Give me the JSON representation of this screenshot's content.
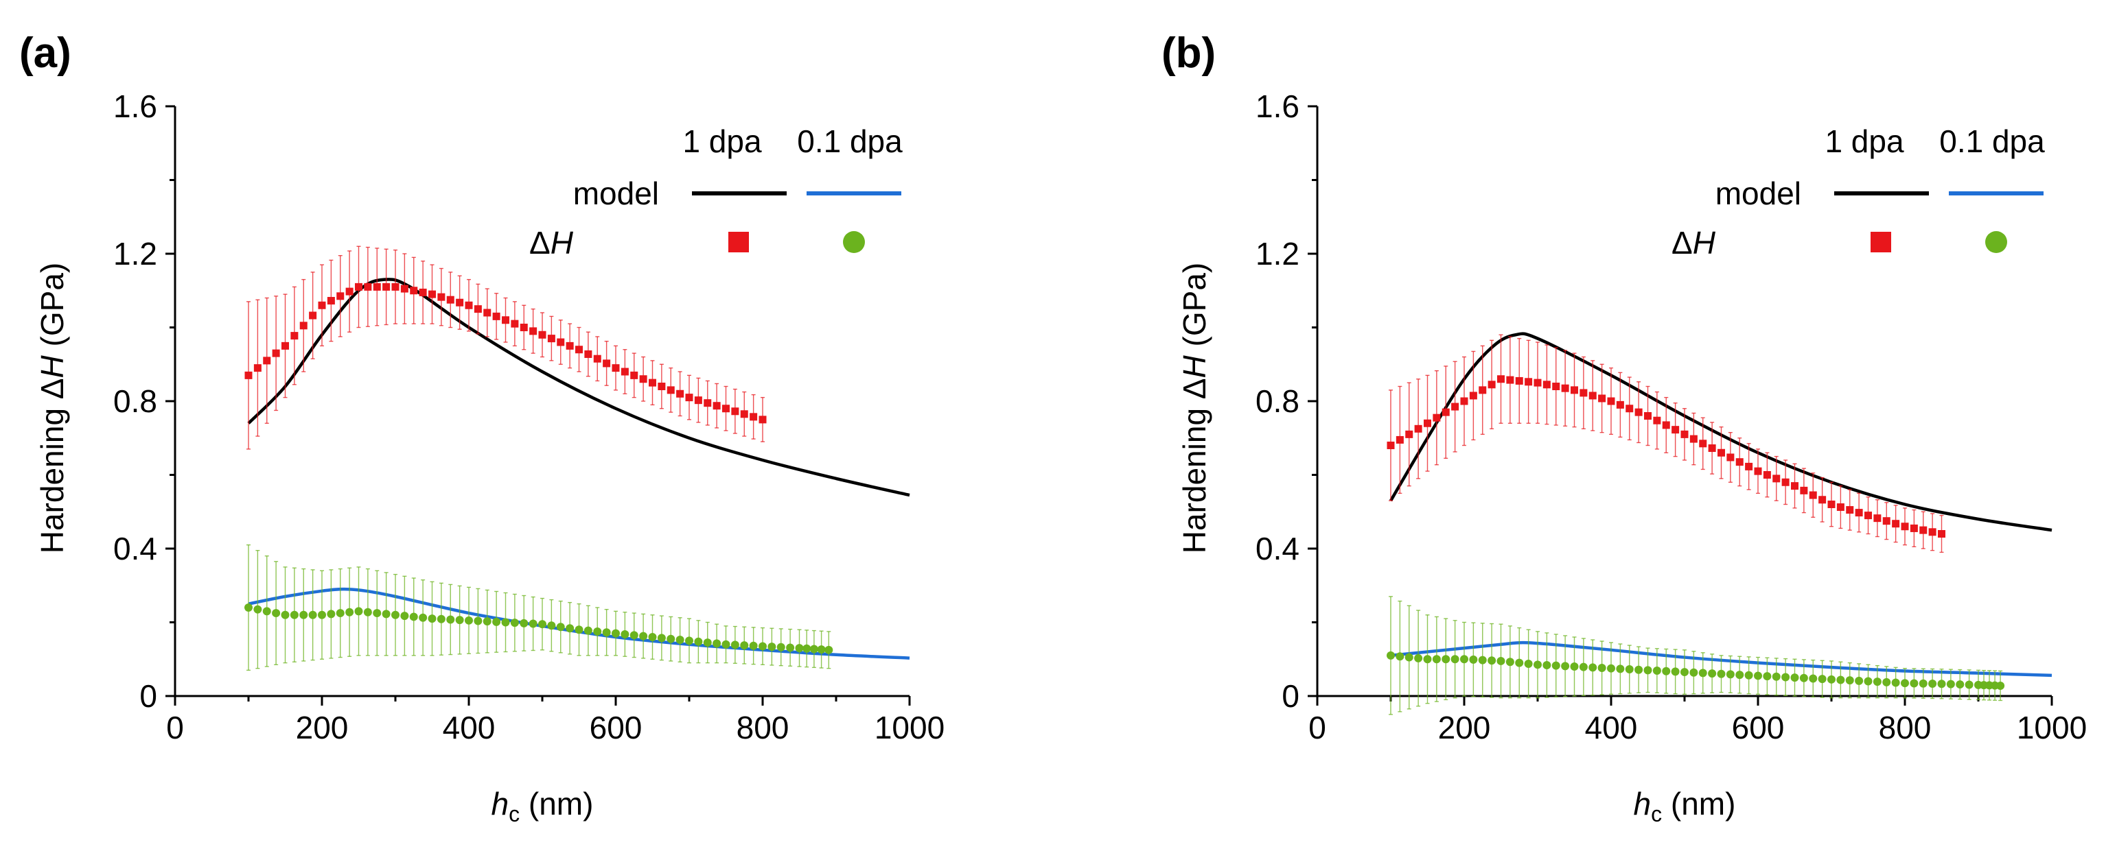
{
  "chart_data": [
    {
      "type": "line",
      "panel_label": "(a)",
      "ylabel_prefix": "Hardening ",
      "ylabel_delta": "Δ",
      "ylabel_var": "H",
      "ylabel_unit": " (GPa)",
      "xlabel_var": "h",
      "xlabel_sub": "c",
      "xlabel_unit": " (nm)",
      "xlim": [
        0,
        1000
      ],
      "ylim": [
        0,
        1.6
      ],
      "xticks": [
        "0",
        "200",
        "400",
        "600",
        "800",
        "1000"
      ],
      "yticks": [
        "0",
        "0.4",
        "0.8",
        "1.2",
        "1.6"
      ],
      "legend": {
        "col1_header": "1 dpa",
        "col2_header": "0.1 dpa",
        "row1_label": "model",
        "row2_delta": "Δ",
        "row2_var": "H",
        "col1_color": "#000000",
        "col2_color": "#1f6fd6",
        "marker1_color": "#e8161b",
        "marker2_color": "#6bb31e"
      },
      "series": [
        {
          "name": "model 1 dpa",
          "kind": "line",
          "color": "#000000",
          "x": [
            100,
            150,
            200,
            250,
            285,
            320,
            400,
            500,
            600,
            700,
            800,
            900,
            1000
          ],
          "y": [
            0.74,
            0.84,
            0.98,
            1.1,
            1.13,
            1.11,
            1.0,
            0.88,
            0.78,
            0.7,
            0.64,
            0.59,
            0.545
          ]
        },
        {
          "name": "model 0.1 dpa",
          "kind": "line",
          "color": "#1f6fd6",
          "x": [
            100,
            150,
            200,
            230,
            260,
            300,
            400,
            500,
            600,
            700,
            800,
            900,
            1000
          ],
          "y": [
            0.25,
            0.27,
            0.285,
            0.29,
            0.285,
            0.27,
            0.225,
            0.19,
            0.16,
            0.14,
            0.125,
            0.112,
            0.103
          ]
        },
        {
          "name": "ΔH 1 dpa",
          "kind": "markers",
          "marker": "square",
          "color": "#e8161b",
          "x": [
            100,
            150,
            200,
            250,
            300,
            350,
            400,
            450,
            500,
            550,
            600,
            650,
            700,
            750,
            800
          ],
          "y": [
            0.87,
            0.95,
            1.06,
            1.11,
            1.11,
            1.09,
            1.06,
            1.02,
            0.98,
            0.94,
            0.89,
            0.85,
            0.81,
            0.78,
            0.75
          ],
          "err": [
            0.2,
            0.14,
            0.11,
            0.11,
            0.1,
            0.08,
            0.07,
            0.06,
            0.06,
            0.06,
            0.06,
            0.06,
            0.06,
            0.06,
            0.06
          ]
        },
        {
          "name": "ΔH 0.1 dpa",
          "kind": "markers",
          "marker": "circle",
          "color": "#6bb31e",
          "x": [
            100,
            150,
            200,
            250,
            300,
            350,
            400,
            450,
            500,
            550,
            600,
            650,
            700,
            750,
            800,
            850,
            890
          ],
          "y": [
            0.24,
            0.22,
            0.22,
            0.23,
            0.22,
            0.21,
            0.205,
            0.2,
            0.195,
            0.18,
            0.17,
            0.16,
            0.15,
            0.14,
            0.135,
            0.13,
            0.125
          ],
          "err": [
            0.17,
            0.13,
            0.12,
            0.12,
            0.11,
            0.1,
            0.09,
            0.08,
            0.07,
            0.07,
            0.06,
            0.06,
            0.06,
            0.05,
            0.05,
            0.05,
            0.05
          ]
        }
      ]
    },
    {
      "type": "line",
      "panel_label": "(b)",
      "ylabel_prefix": "Hardening ",
      "ylabel_delta": "Δ",
      "ylabel_var": "H",
      "ylabel_unit": " (GPa)",
      "xlabel_var": "h",
      "xlabel_sub": "c",
      "xlabel_unit": " (nm)",
      "xlim": [
        0,
        1000
      ],
      "ylim": [
        0,
        1.6
      ],
      "xticks": [
        "0",
        "200",
        "400",
        "600",
        "800",
        "1000"
      ],
      "yticks": [
        "0",
        "0.4",
        "0.8",
        "1.2",
        "1.6"
      ],
      "legend": {
        "col1_header": "1 dpa",
        "col2_header": "0.1 dpa",
        "row1_label": "model",
        "row2_delta": "Δ",
        "row2_var": "H",
        "col1_color": "#000000",
        "col2_color": "#1f6fd6",
        "marker1_color": "#e8161b",
        "marker2_color": "#6bb31e"
      },
      "series": [
        {
          "name": "model 1 dpa",
          "kind": "line",
          "color": "#000000",
          "x": [
            100,
            150,
            200,
            240,
            270,
            300,
            400,
            500,
            600,
            700,
            800,
            900,
            1000
          ],
          "y": [
            0.53,
            0.7,
            0.86,
            0.95,
            0.98,
            0.97,
            0.87,
            0.76,
            0.66,
            0.58,
            0.52,
            0.48,
            0.45
          ]
        },
        {
          "name": "model 0.1 dpa",
          "kind": "line",
          "color": "#1f6fd6",
          "x": [
            100,
            150,
            200,
            250,
            280,
            320,
            400,
            500,
            600,
            700,
            800,
            900,
            1000
          ],
          "y": [
            0.11,
            0.12,
            0.13,
            0.14,
            0.145,
            0.14,
            0.125,
            0.105,
            0.09,
            0.078,
            0.068,
            0.062,
            0.056
          ]
        },
        {
          "name": "ΔH 1 dpa",
          "kind": "markers",
          "marker": "square",
          "color": "#e8161b",
          "x": [
            100,
            150,
            200,
            250,
            300,
            350,
            400,
            450,
            500,
            550,
            600,
            650,
            700,
            750,
            800,
            850
          ],
          "y": [
            0.68,
            0.74,
            0.8,
            0.86,
            0.85,
            0.83,
            0.8,
            0.76,
            0.71,
            0.66,
            0.61,
            0.57,
            0.52,
            0.49,
            0.46,
            0.44
          ],
          "err": [
            0.15,
            0.13,
            0.12,
            0.12,
            0.11,
            0.1,
            0.09,
            0.08,
            0.07,
            0.07,
            0.06,
            0.06,
            0.06,
            0.05,
            0.05,
            0.05
          ]
        },
        {
          "name": "ΔH 0.1 dpa",
          "kind": "markers",
          "marker": "circle",
          "color": "#6bb31e",
          "x": [
            100,
            150,
            200,
            250,
            300,
            350,
            400,
            450,
            500,
            550,
            600,
            650,
            700,
            750,
            800,
            850,
            900,
            930
          ],
          "y": [
            0.11,
            0.1,
            0.1,
            0.095,
            0.085,
            0.08,
            0.075,
            0.07,
            0.065,
            0.06,
            0.055,
            0.05,
            0.045,
            0.04,
            0.035,
            0.033,
            0.03,
            0.028
          ],
          "err": [
            0.16,
            0.12,
            0.1,
            0.1,
            0.09,
            0.08,
            0.07,
            0.06,
            0.06,
            0.05,
            0.05,
            0.05,
            0.05,
            0.045,
            0.04,
            0.04,
            0.04,
            0.04
          ]
        }
      ]
    }
  ]
}
